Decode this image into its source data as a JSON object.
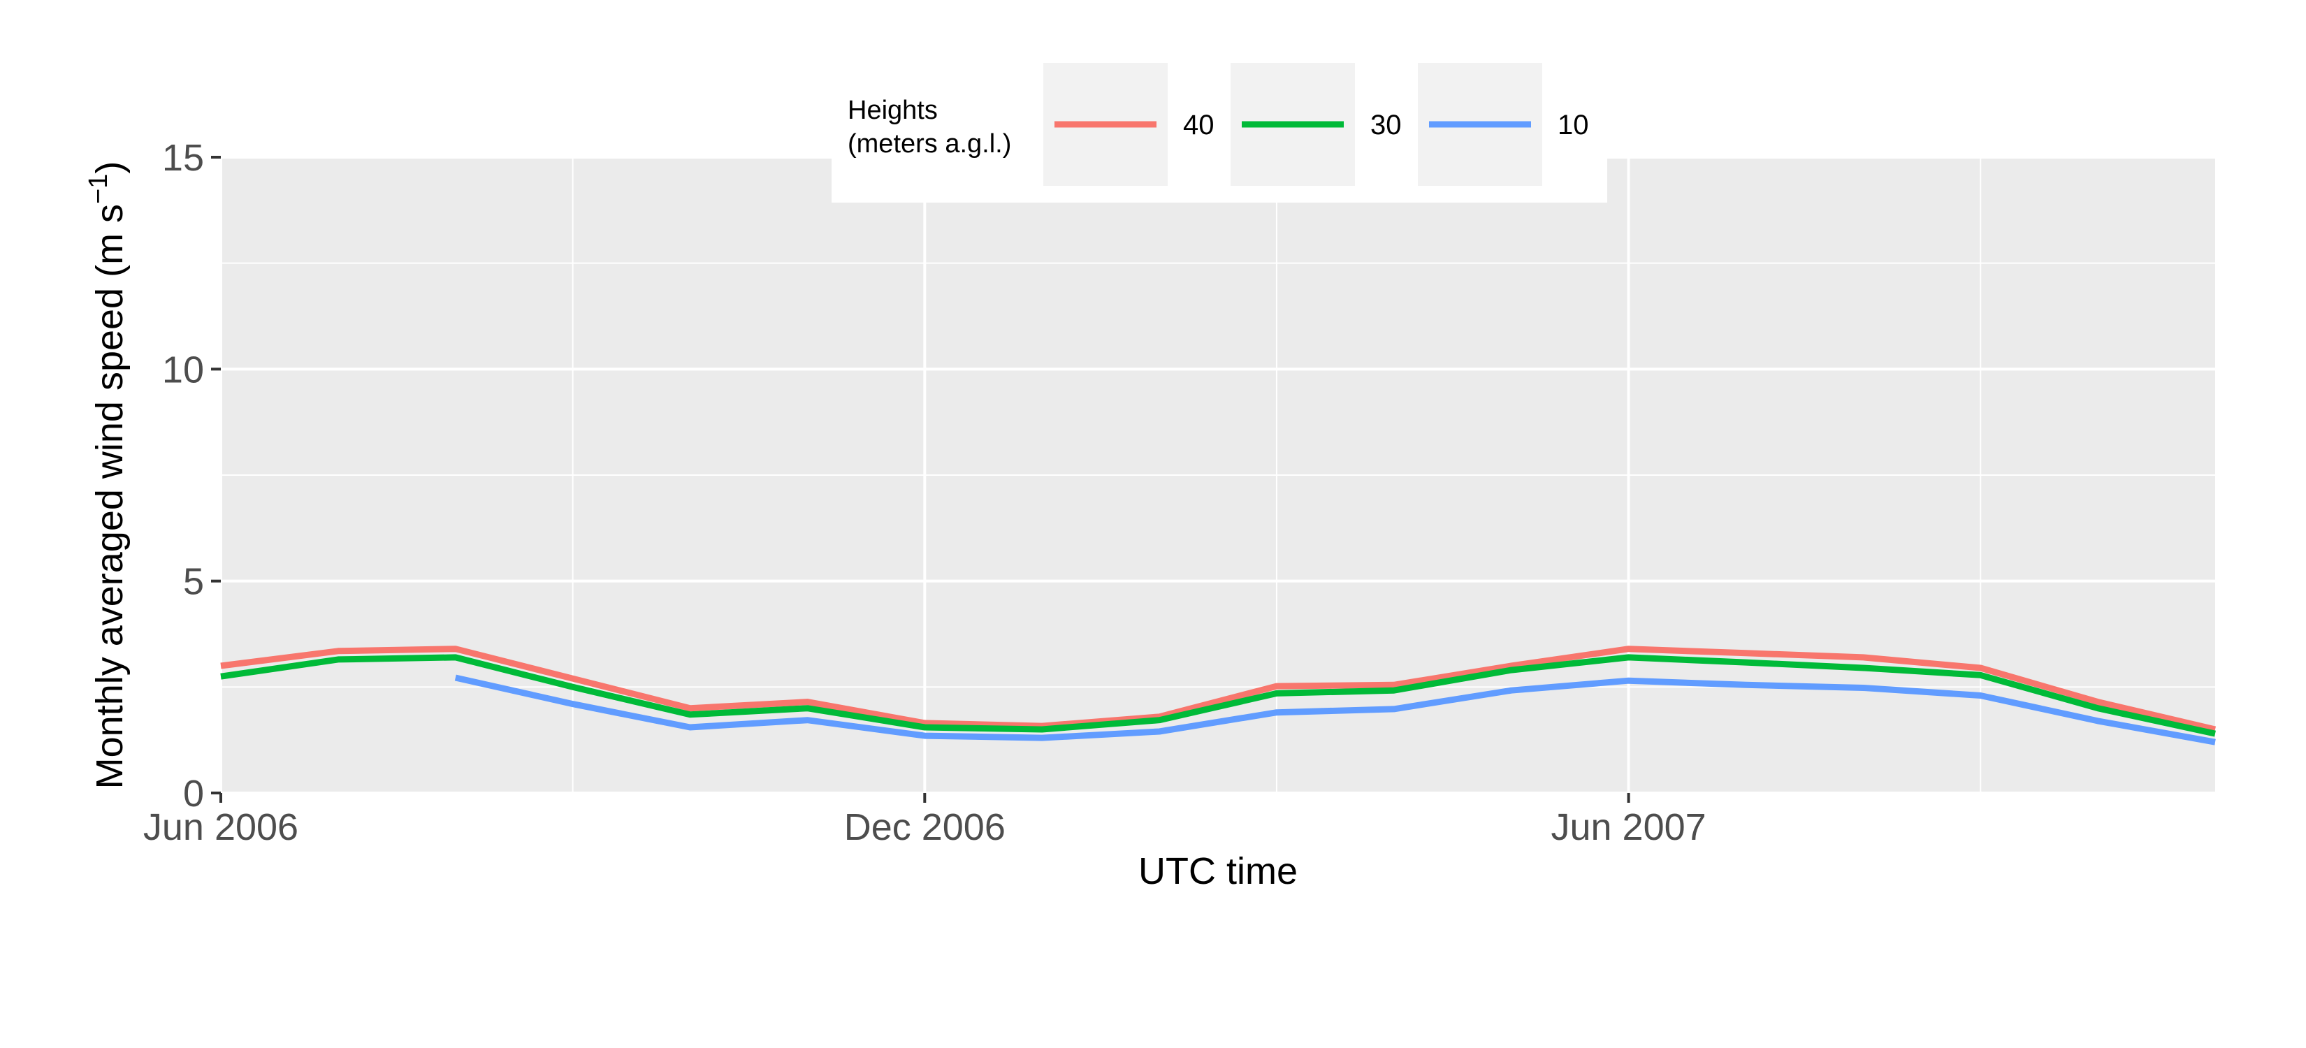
{
  "chart_data": {
    "type": "line",
    "xlabel": "UTC time",
    "ylabel": "Monthly averaged wind speed (m s",
    "ylabel_sup": "−1",
    "ylabel_close": ")",
    "ylim": [
      0,
      15
    ],
    "yticks": [
      0,
      5,
      10,
      15
    ],
    "ytick_labels": [
      "0",
      "5",
      "10",
      "15"
    ],
    "x_range_months": [
      0,
      17
    ],
    "x_ticks": [
      {
        "month": 0,
        "label": "Jun 2006"
      },
      {
        "month": 6,
        "label": "Dec 2006"
      },
      {
        "month": 12,
        "label": "Jun 2007"
      }
    ],
    "x_minor_months": [
      3,
      9,
      15
    ],
    "legend": {
      "title_line1": "Heights",
      "title_line2": "(meters a.g.l.)",
      "position": "top-center"
    },
    "series": [
      {
        "name": "40",
        "color": "#F8766D",
        "x": [
          0,
          1,
          2,
          3,
          4,
          5,
          6,
          7,
          8,
          9,
          10,
          11,
          12,
          13,
          14,
          15,
          16,
          17
        ],
        "values": [
          3.0,
          3.35,
          3.4,
          2.7,
          2.0,
          2.15,
          1.65,
          1.58,
          1.8,
          2.52,
          2.55,
          3.0,
          3.4,
          3.3,
          3.2,
          2.95,
          2.15,
          1.5
        ]
      },
      {
        "name": "30",
        "color": "#00BA38",
        "x": [
          0,
          1,
          2,
          3,
          4,
          5,
          6,
          7,
          8,
          9,
          10,
          11,
          12,
          13,
          14,
          15,
          16,
          17
        ],
        "values": [
          2.75,
          3.15,
          3.2,
          2.5,
          1.85,
          2.0,
          1.55,
          1.5,
          1.72,
          2.35,
          2.42,
          2.9,
          3.2,
          3.08,
          2.95,
          2.78,
          2.0,
          1.4
        ]
      },
      {
        "name": "10",
        "color": "#619CFF",
        "x": [
          2,
          3,
          4,
          5,
          6,
          7,
          8,
          9,
          10,
          11,
          12,
          13,
          14,
          15,
          16,
          17
        ],
        "values": [
          2.72,
          2.1,
          1.55,
          1.72,
          1.35,
          1.3,
          1.45,
          1.9,
          1.98,
          2.42,
          2.65,
          2.55,
          2.48,
          2.3,
          1.7,
          1.2
        ]
      }
    ]
  }
}
